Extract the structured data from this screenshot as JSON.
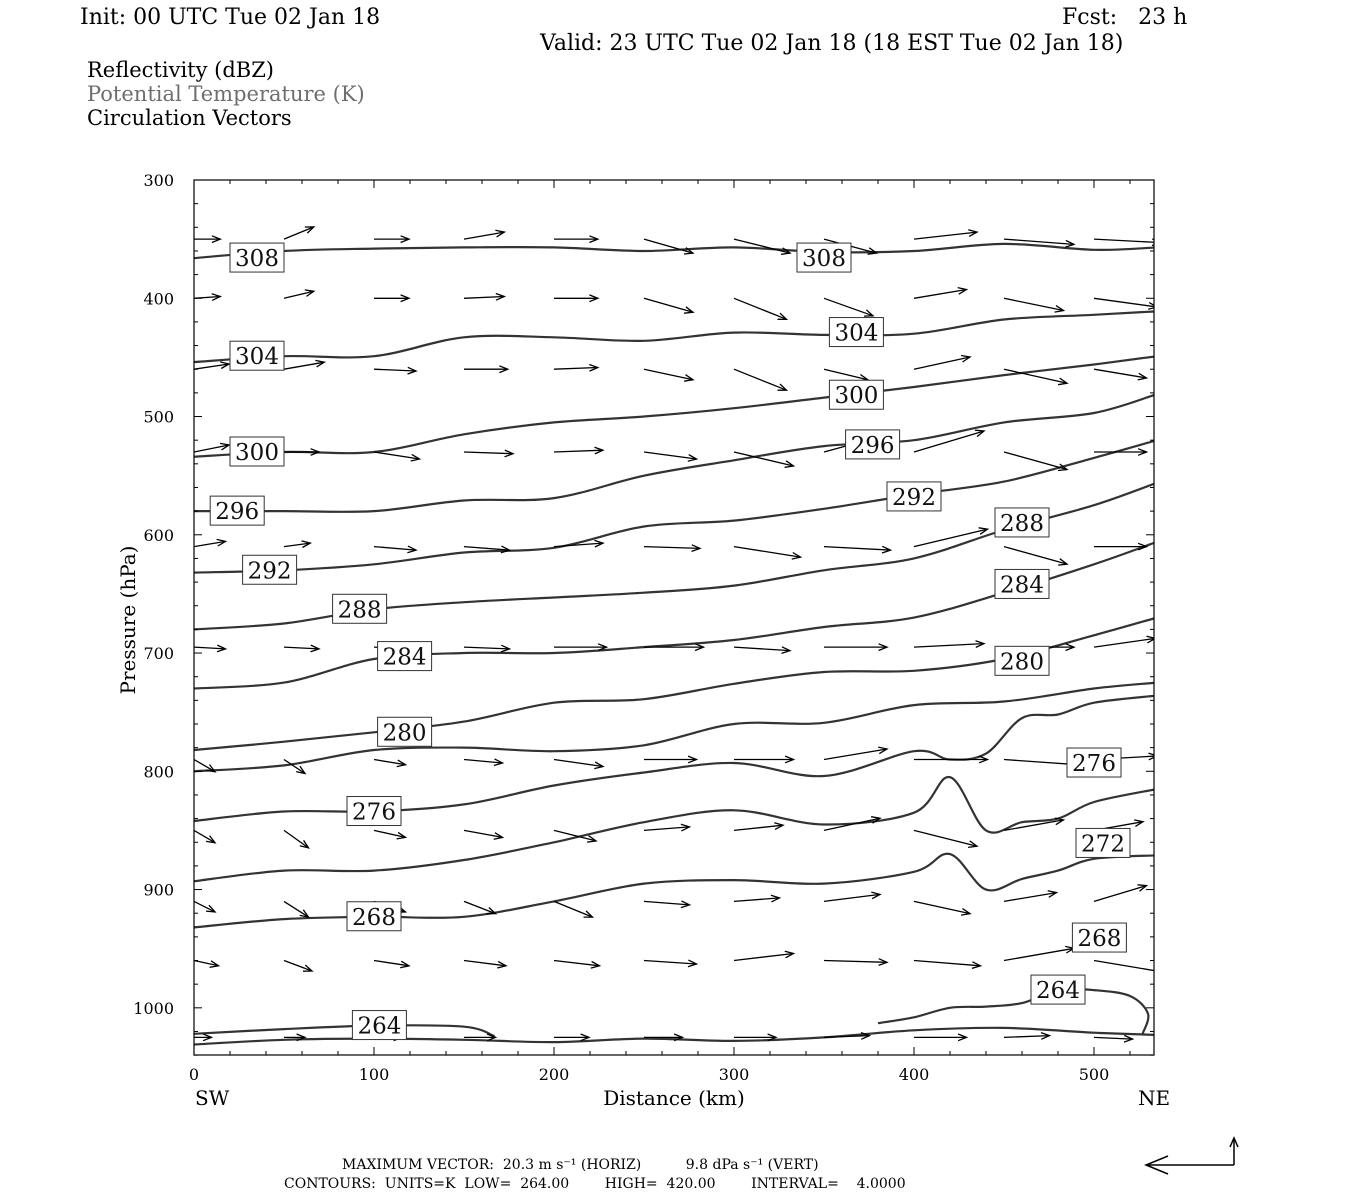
{
  "header": {
    "init": "Init: 00 UTC Tue 02 Jan 18",
    "fcst": "Fcst:   23 h",
    "valid": "Valid: 23 UTC Tue 02 Jan 18 (18 EST Tue 02 Jan 18)"
  },
  "legend": {
    "items": [
      "Reflectivity (dBZ)",
      "Potential Temperature (K)",
      "Circulation Vectors"
    ],
    "potential_temperature_color": "#6e6e6e"
  },
  "footer": {
    "line1": "MAXIMUM VECTOR:  20.3 m s⁻¹ (HORIZ)          9.8 dPa s⁻¹ (VERT)",
    "line2": "CONTOURS:  UNITS=K  LOW=  264.00        HIGH=  420.00        INTERVAL=    4.0000"
  },
  "chart_data": {
    "type": "line",
    "title": "",
    "xlabel": "Distance (km)",
    "ylabel": "Pressure (hPa)",
    "xlim": [
      0,
      535
    ],
    "ylim": [
      1040,
      300
    ],
    "x_ticks": [
      0,
      100,
      200,
      300,
      400,
      500
    ],
    "y_ticks": [
      300,
      400,
      500,
      600,
      700,
      800,
      900,
      1000
    ],
    "x_end_labels": {
      "left": "SW",
      "right": "NE"
    },
    "contour_units": "K",
    "contour_interval": 4,
    "series": [
      {
        "label": "308",
        "x": [
          0,
          50,
          100,
          150,
          200,
          250,
          300,
          350,
          400,
          450,
          500,
          535
        ],
        "y": [
          366,
          360,
          358,
          357,
          357,
          360,
          357,
          361,
          360,
          354,
          359,
          357
        ],
        "label_at": [
          [
            35,
            366
          ],
          [
            350,
            366
          ]
        ]
      },
      {
        "label": "304",
        "x": [
          0,
          50,
          100,
          150,
          200,
          250,
          300,
          350,
          400,
          450,
          500,
          535
        ],
        "y": [
          454,
          449,
          449,
          433,
          433,
          436,
          429,
          431,
          430,
          418,
          414,
          411
        ],
        "label_at": [
          [
            35,
            449
          ],
          [
            368,
            429
          ]
        ]
      },
      {
        "label": "300",
        "x": [
          0,
          50,
          100,
          150,
          200,
          250,
          300,
          350,
          400,
          450,
          500,
          535
        ],
        "y": [
          534,
          530,
          530,
          515,
          505,
          500,
          493,
          484,
          475,
          465,
          456,
          449
        ],
        "label_at": [
          [
            35,
            530
          ],
          [
            368,
            482
          ]
        ]
      },
      {
        "label": "296",
        "x": [
          0,
          50,
          100,
          150,
          200,
          250,
          300,
          350,
          400,
          450,
          500,
          535
        ],
        "y": [
          580,
          580,
          580,
          571,
          569,
          550,
          537,
          525,
          520,
          505,
          497,
          481
        ],
        "label_at": [
          [
            24,
            580
          ],
          [
            377,
            524
          ]
        ]
      },
      {
        "label": "292",
        "x": [
          0,
          50,
          100,
          150,
          200,
          250,
          300,
          350,
          400,
          450,
          500,
          535
        ],
        "y": [
          632,
          630,
          625,
          615,
          611,
          593,
          588,
          578,
          566,
          555,
          535,
          520
        ],
        "label_at": [
          [
            42,
            630
          ],
          [
            400,
            568
          ]
        ]
      },
      {
        "label": "288",
        "x": [
          0,
          50,
          100,
          150,
          200,
          250,
          300,
          350,
          400,
          450,
          500,
          535
        ],
        "y": [
          680,
          675,
          663,
          657,
          653,
          649,
          643,
          630,
          620,
          596,
          575,
          556
        ],
        "label_at": [
          [
            92,
            663
          ],
          [
            460,
            590
          ]
        ]
      },
      {
        "label": "284",
        "x": [
          0,
          50,
          100,
          150,
          200,
          250,
          300,
          350,
          400,
          450,
          500,
          535
        ],
        "y": [
          730,
          725,
          705,
          700,
          700,
          695,
          689,
          678,
          670,
          649,
          625,
          606
        ],
        "label_at": [
          [
            117,
            703
          ],
          [
            460,
            642
          ]
        ]
      },
      {
        "label": "280",
        "x": [
          0,
          50,
          100,
          150,
          200,
          250,
          300,
          350,
          400,
          450,
          500,
          535
        ],
        "y": [
          782,
          775,
          767,
          758,
          742,
          739,
          726,
          716,
          715,
          705,
          685,
          670
        ],
        "label_at": [
          [
            117,
            767
          ],
          [
            460,
            707
          ]
        ]
      },
      {
        "label": "276",
        "x": [
          0,
          50,
          100,
          150,
          200,
          250,
          300,
          350,
          400,
          450,
          500,
          535
        ],
        "y": [
          800,
          795,
          782,
          780,
          783,
          778,
          760,
          759,
          744,
          741,
          730,
          725
        ],
        "label_at": [
          [
            500,
            793
          ]
        ]
      },
      {
        "label": "276",
        "x": [
          0,
          50,
          100,
          150,
          200,
          250,
          300,
          350,
          400,
          420,
          440,
          460,
          480,
          500,
          535
        ],
        "y": [
          842,
          834,
          834,
          828,
          812,
          801,
          793,
          804,
          783,
          790,
          785,
          755,
          752,
          742,
          736
        ],
        "label_at": [
          [
            100,
            834
          ]
        ]
      },
      {
        "label": "272",
        "x": [
          0,
          50,
          100,
          150,
          200,
          250,
          300,
          350,
          400,
          420,
          440,
          460,
          480,
          500,
          535
        ],
        "y": [
          893,
          884,
          884,
          875,
          860,
          843,
          833,
          845,
          835,
          805,
          850,
          843,
          840,
          826,
          815
        ],
        "label_at": [
          [
            505,
            861
          ]
        ]
      },
      {
        "label": "268",
        "x": [
          0,
          50,
          100,
          150,
          200,
          250,
          300,
          350,
          400,
          420,
          440,
          460,
          480,
          500,
          535
        ],
        "y": [
          932,
          925,
          923,
          923,
          910,
          895,
          892,
          895,
          885,
          870,
          900,
          891,
          884,
          874,
          871
        ],
        "label_at": [
          [
            100,
            923
          ],
          [
            503,
            941
          ]
        ]
      },
      {
        "label": "264",
        "x": [
          0,
          50,
          100,
          150,
          167
        ],
        "y": [
          1022,
          1018,
          1015,
          1016,
          1024
        ],
        "label_at": [
          [
            103,
            1015
          ]
        ]
      },
      {
        "label": "264",
        "x": [
          380,
          400,
          420,
          440,
          460,
          480,
          500,
          520,
          530,
          527
        ],
        "y": [
          1013,
          1008,
          1000,
          999,
          996,
          985,
          985,
          990,
          1005,
          1022
        ],
        "label_at": [
          [
            480,
            985
          ]
        ]
      },
      {
        "label": "264",
        "x": [
          0,
          50,
          100,
          150,
          200,
          250,
          300,
          350,
          400,
          450,
          500,
          535
        ],
        "y": [
          1031,
          1027,
          1026,
          1027,
          1029,
          1026,
          1028,
          1025,
          1019,
          1017,
          1021,
          1023
        ],
        "label_at": []
      }
    ],
    "vector_rows": [
      {
        "p": 350,
        "x": [
          0,
          50,
          100,
          150,
          200,
          250,
          300,
          350,
          400,
          450,
          500,
          535
        ],
        "u": [
          15,
          17,
          20,
          23,
          25,
          28,
          32,
          30,
          36,
          40,
          38,
          30
        ],
        "v": [
          0,
          -7,
          0,
          -4,
          0,
          8,
          8,
          8,
          -4,
          3,
          2,
          1
        ]
      },
      {
        "p": 400,
        "x": [
          0,
          50,
          100,
          150,
          200,
          250,
          300,
          350,
          400,
          450,
          500,
          535
        ],
        "u": [
          15,
          17,
          20,
          23,
          25,
          28,
          30,
          28,
          30,
          34,
          36,
          30
        ],
        "v": [
          -1,
          -4,
          0,
          -1,
          0,
          8,
          12,
          10,
          -5,
          7,
          5,
          3
        ]
      },
      {
        "p": 460,
        "x": [
          0,
          50,
          100,
          150,
          200,
          250,
          300,
          350,
          400,
          450,
          500,
          535
        ],
        "u": [
          20,
          23,
          24,
          25,
          25,
          28,
          30,
          25,
          32,
          36,
          30,
          25
        ],
        "v": [
          -3,
          -4,
          1,
          0,
          -1,
          6,
          12,
          6,
          -7,
          8,
          5,
          0
        ]
      },
      {
        "p": 530,
        "x": [
          0,
          50,
          100,
          150,
          200,
          250,
          300,
          350,
          400,
          450,
          500,
          535
        ],
        "u": [
          20,
          20,
          26,
          28,
          28,
          30,
          34,
          22,
          40,
          36,
          30,
          25
        ],
        "v": [
          -4,
          0,
          4,
          1,
          -1,
          4,
          8,
          -6,
          -12,
          10,
          0,
          -2
        ]
      },
      {
        "p": 610,
        "x": [
          0,
          50,
          100,
          150,
          200,
          250,
          300,
          350,
          400,
          450,
          500,
          535
        ],
        "u": [
          18,
          15,
          24,
          26,
          28,
          32,
          38,
          38,
          42,
          36,
          30,
          25
        ],
        "v": [
          -3,
          -2,
          2,
          2,
          -2,
          1,
          6,
          2,
          -10,
          10,
          0,
          -5
        ]
      },
      {
        "p": 695,
        "x": [
          0,
          50,
          100,
          150,
          200,
          250,
          300,
          350,
          400,
          450,
          500,
          535
        ],
        "u": [
          18,
          20,
          22,
          26,
          30,
          34,
          32,
          36,
          40,
          40,
          35,
          25
        ],
        "v": [
          1,
          1,
          1,
          1,
          0,
          0,
          2,
          0,
          -2,
          0,
          -5,
          -5
        ]
      },
      {
        "p": 790,
        "x": [
          0,
          50,
          100,
          150,
          200,
          250,
          300,
          350,
          400,
          450,
          500,
          535
        ],
        "u": [
          12,
          12,
          18,
          22,
          28,
          30,
          34,
          36,
          42,
          42,
          36,
          30
        ],
        "v": [
          7,
          8,
          3,
          2,
          4,
          0,
          0,
          -6,
          0,
          3,
          -2,
          0
        ]
      },
      {
        "p": 850,
        "x": [
          0,
          50,
          100,
          150,
          200,
          250,
          300,
          350,
          400,
          450,
          500,
          535
        ],
        "u": [
          12,
          14,
          18,
          22,
          24,
          26,
          28,
          32,
          36,
          34,
          28,
          28
        ],
        "v": [
          7,
          10,
          4,
          4,
          6,
          -2,
          -3,
          -7,
          9,
          -6,
          -5,
          2
        ]
      },
      {
        "p": 910,
        "x": [
          0,
          50,
          100,
          150,
          200,
          250,
          300,
          350,
          400,
          450,
          500,
          535
        ],
        "u": [
          12,
          14,
          18,
          18,
          22,
          26,
          26,
          32,
          32,
          30,
          30,
          32
        ],
        "v": [
          6,
          9,
          6,
          7,
          9,
          2,
          -2,
          -4,
          7,
          -5,
          -9,
          4
        ]
      },
      {
        "p": 960,
        "x": [
          0,
          50,
          100,
          150,
          200,
          250,
          300,
          350,
          400,
          450,
          500,
          535
        ],
        "u": [
          14,
          16,
          20,
          24,
          26,
          30,
          34,
          36,
          38,
          40,
          42,
          34
        ],
        "v": [
          3,
          6,
          3,
          3,
          3,
          2,
          -4,
          1,
          3,
          -7,
          7,
          5
        ]
      },
      {
        "p": 1025,
        "x": [
          0,
          50,
          100,
          150,
          200,
          250,
          300,
          350,
          400,
          450,
          500,
          535
        ],
        "u": [
          10,
          12,
          16,
          18,
          20,
          22,
          24,
          26,
          30,
          26,
          22,
          14
        ],
        "v": [
          0,
          0,
          0,
          0,
          0,
          0,
          0,
          -1,
          0,
          -1,
          1,
          0
        ]
      }
    ]
  }
}
